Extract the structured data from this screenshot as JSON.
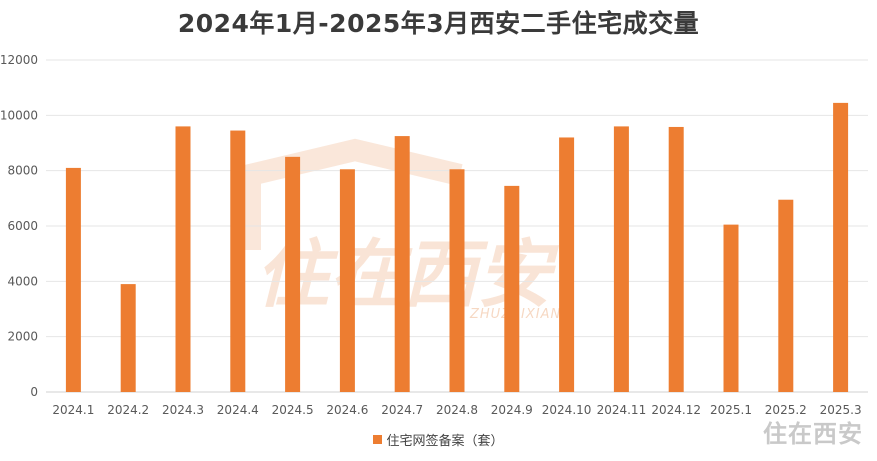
{
  "chart_data": {
    "type": "bar",
    "title": "2024年1月-2025年3月西安二手住宅成交量",
    "categories": [
      "2024.1",
      "2024.2",
      "2024.3",
      "2024.4",
      "2024.5",
      "2024.6",
      "2024.7",
      "2024.8",
      "2024.9",
      "2024.10",
      "2024.11",
      "2024.12",
      "2025.1",
      "2025.2",
      "2025.3"
    ],
    "series": [
      {
        "name": "住宅网签备案（套）",
        "values": [
          8100,
          3900,
          9600,
          9450,
          8500,
          8050,
          9250,
          8050,
          7450,
          9200,
          9600,
          9580,
          6050,
          6950,
          10450
        ]
      }
    ],
    "ylim": [
      0,
      12000
    ],
    "yticks": [
      0,
      2000,
      4000,
      6000,
      8000,
      10000,
      12000
    ],
    "grid": true,
    "legend_position": "bottom",
    "colors": {
      "bar": "#ED7D31"
    }
  },
  "watermark": {
    "main_text": "住在西安",
    "sub_text": "ZHUZAIXIAN"
  },
  "brand_text": "住在西安"
}
